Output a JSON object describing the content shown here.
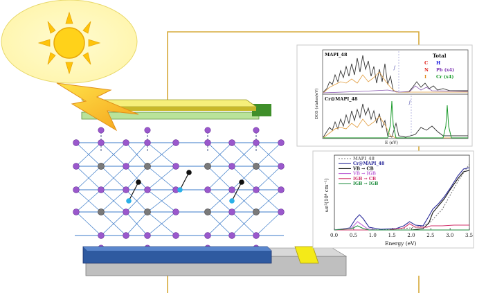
{
  "dos_panel": {
    "top_label": "MAPI_48",
    "bottom_label": "Cr@MAPI_48",
    "ylabel": "DOS (states/eV)",
    "xlabel": "E (eV)",
    "legend_title": "Total",
    "legend_items": [
      {
        "text": "C",
        "color": "#e0201a"
      },
      {
        "text": "H",
        "color": "#1a1ae0"
      },
      {
        "text": "N",
        "color": "#e0201a"
      },
      {
        "text": "Pb (x4)",
        "color": "#7a2fb0"
      },
      {
        "text": "I",
        "color": "#e08a1a"
      },
      {
        "text": "Cr (x4)",
        "color": "#1a9a2a"
      }
    ]
  },
  "chart_data": {
    "type": "line",
    "xlabel": "Energy  (eV)",
    "ylabel": "ωε²(10⁴ cm⁻¹)",
    "xlim": [
      0.0,
      3.5
    ],
    "xticks": [
      "0.0",
      "0.5",
      "1.0",
      "1.5",
      "2.0",
      "2.5",
      "3.0",
      "3.5"
    ],
    "series": [
      {
        "name": "MAPI_48",
        "color": "#7a7a7a",
        "style": "dashed",
        "x": [
          0.0,
          0.5,
          1.0,
          1.5,
          2.0,
          2.3,
          2.5,
          2.8,
          3.0,
          3.2,
          3.5
        ],
        "y": [
          0.0,
          0.0,
          0.0,
          0.01,
          0.03,
          0.06,
          0.12,
          0.3,
          0.5,
          0.7,
          0.95
        ]
      },
      {
        "name": "Cr@MAPI_48",
        "color": "#2a2a9a",
        "style": "solid",
        "x": [
          0.0,
          0.4,
          0.55,
          0.65,
          0.75,
          0.9,
          1.2,
          1.6,
          1.8,
          1.95,
          2.1,
          2.3,
          2.45,
          2.55,
          2.7,
          2.85,
          3.0,
          3.2,
          3.35,
          3.5
        ],
        "y": [
          0.0,
          0.03,
          0.16,
          0.22,
          0.16,
          0.04,
          0.01,
          0.02,
          0.06,
          0.12,
          0.07,
          0.06,
          0.2,
          0.3,
          0.38,
          0.48,
          0.6,
          0.78,
          0.88,
          0.9
        ]
      },
      {
        "name": "VB  → CB",
        "color": "#111111",
        "style": "solid",
        "x": [
          0.0,
          1.5,
          2.0,
          2.3,
          2.45,
          2.55,
          2.7,
          2.85,
          3.0,
          3.2,
          3.35,
          3.5
        ],
        "y": [
          0.0,
          0.0,
          0.0,
          0.02,
          0.1,
          0.25,
          0.35,
          0.45,
          0.58,
          0.74,
          0.84,
          0.86
        ]
      },
      {
        "name": "VB  → IGB",
        "color": "#c06ad8",
        "style": "solid",
        "x": [
          0.0,
          0.45,
          0.6,
          0.7,
          0.85,
          1.1,
          3.5
        ],
        "y": [
          0.0,
          0.03,
          0.12,
          0.08,
          0.02,
          0.0,
          0.0
        ]
      },
      {
        "name": "IGB → CB",
        "color": "#d0306a",
        "style": "solid",
        "x": [
          0.0,
          1.4,
          1.8,
          1.95,
          2.1,
          2.4,
          2.5,
          2.8,
          3.1,
          3.5
        ],
        "y": [
          0.0,
          0.0,
          0.03,
          0.09,
          0.04,
          0.04,
          0.06,
          0.06,
          0.07,
          0.07
        ]
      },
      {
        "name": "IGB → IGB",
        "color": "#1a8a3a",
        "style": "solid",
        "x": [
          0.0,
          0.45,
          0.6,
          0.75,
          0.9,
          3.5
        ],
        "y": [
          0.0,
          0.02,
          0.06,
          0.02,
          0.0,
          0.0
        ]
      }
    ]
  }
}
